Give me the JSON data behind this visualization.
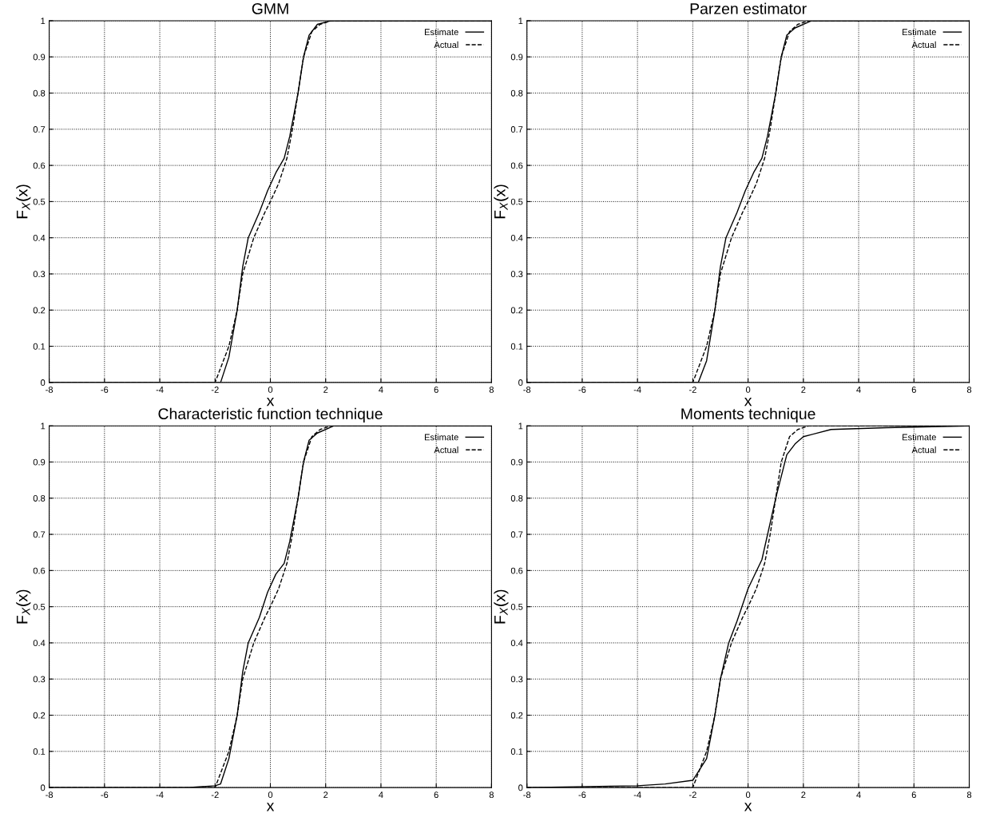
{
  "chart_data": [
    {
      "type": "line",
      "title": "GMM",
      "xlabel": "x",
      "ylabel": "F$_{X}$(x)",
      "xlim": [
        -8,
        8
      ],
      "ylim": [
        0,
        1
      ],
      "xticks": [
        -8,
        -6,
        -4,
        -2,
        0,
        2,
        4,
        6,
        8
      ],
      "yticks": [
        0,
        0.1,
        0.2,
        0.3,
        0.4,
        0.5,
        0.6,
        0.7,
        0.8,
        0.9,
        1
      ],
      "grid": true,
      "legend": "top right",
      "series": [
        {
          "name": "Estimate",
          "color": "#000000",
          "line_style": "solid",
          "x": [
            -8,
            -2,
            -1.8,
            -1.5,
            -1.2,
            -1.0,
            -0.8,
            -0.4,
            -0.1,
            0.2,
            0.5,
            0.7,
            1.0,
            1.2,
            1.4,
            1.7,
            2.2,
            8
          ],
          "values": [
            0,
            0,
            0,
            0.07,
            0.2,
            0.32,
            0.4,
            0.47,
            0.53,
            0.58,
            0.62,
            0.68,
            0.8,
            0.9,
            0.96,
            0.99,
            1,
            1
          ]
        },
        {
          "name": "Actual",
          "color": "#000000",
          "line_style": "dashed",
          "x": [
            -8,
            -2,
            -1.5,
            -1.2,
            -1.0,
            -0.6,
            -0.2,
            0,
            0.3,
            0.6,
            0.8,
            1.0,
            1.2,
            1.5,
            1.8,
            2.2,
            8
          ],
          "values": [
            0,
            0,
            0.1,
            0.2,
            0.3,
            0.4,
            0.47,
            0.5,
            0.55,
            0.62,
            0.7,
            0.8,
            0.9,
            0.97,
            0.99,
            1,
            1
          ]
        }
      ]
    },
    {
      "type": "line",
      "title": "Parzen estimator",
      "xlabel": "x",
      "ylabel": "F$_{X}$(x)",
      "xlim": [
        -8,
        8
      ],
      "ylim": [
        0,
        1
      ],
      "xticks": [
        -8,
        -6,
        -4,
        -2,
        0,
        2,
        4,
        6,
        8
      ],
      "yticks": [
        0,
        0.1,
        0.2,
        0.3,
        0.4,
        0.5,
        0.6,
        0.7,
        0.8,
        0.9,
        1
      ],
      "grid": true,
      "legend": "top right",
      "series": [
        {
          "name": "Estimate",
          "color": "#000000",
          "line_style": "solid",
          "x": [
            -8,
            -2,
            -1.8,
            -1.5,
            -1.2,
            -1.0,
            -0.8,
            -0.4,
            -0.1,
            0.2,
            0.5,
            0.7,
            1.0,
            1.2,
            1.4,
            1.7,
            2.3,
            8
          ],
          "values": [
            0,
            0,
            0,
            0.06,
            0.2,
            0.32,
            0.4,
            0.47,
            0.53,
            0.58,
            0.62,
            0.68,
            0.8,
            0.9,
            0.96,
            0.98,
            1,
            1
          ]
        },
        {
          "name": "Actual",
          "color": "#000000",
          "line_style": "dashed",
          "x": [
            -8,
            -2,
            -1.5,
            -1.2,
            -1.0,
            -0.6,
            -0.2,
            0,
            0.3,
            0.6,
            0.8,
            1.0,
            1.2,
            1.5,
            1.8,
            2.2,
            8
          ],
          "values": [
            0,
            0,
            0.1,
            0.2,
            0.3,
            0.4,
            0.47,
            0.5,
            0.55,
            0.62,
            0.7,
            0.8,
            0.9,
            0.97,
            0.99,
            1,
            1
          ]
        }
      ]
    },
    {
      "type": "line",
      "title": "Characteristic function technique",
      "xlabel": "x",
      "ylabel": "F$_{X}$(x)",
      "xlim": [
        -8,
        8
      ],
      "ylim": [
        0,
        1
      ],
      "xticks": [
        -8,
        -6,
        -4,
        -2,
        0,
        2,
        4,
        6,
        8
      ],
      "yticks": [
        0,
        0.1,
        0.2,
        0.3,
        0.4,
        0.5,
        0.6,
        0.7,
        0.8,
        0.9,
        1
      ],
      "grid": true,
      "legend": "top right",
      "series": [
        {
          "name": "Estimate",
          "color": "#000000",
          "line_style": "solid",
          "x": [
            -8,
            -3,
            -2,
            -1.8,
            -1.5,
            -1.2,
            -1.0,
            -0.8,
            -0.4,
            -0.1,
            0.2,
            0.5,
            0.7,
            1.0,
            1.2,
            1.4,
            1.7,
            2.3,
            8
          ],
          "values": [
            0,
            0,
            0.005,
            0.01,
            0.08,
            0.2,
            0.32,
            0.4,
            0.47,
            0.54,
            0.59,
            0.62,
            0.68,
            0.8,
            0.9,
            0.96,
            0.98,
            1,
            1
          ]
        },
        {
          "name": "Actual",
          "color": "#000000",
          "line_style": "dashed",
          "x": [
            -8,
            -2,
            -1.5,
            -1.2,
            -1.0,
            -0.6,
            -0.2,
            0,
            0.3,
            0.6,
            0.8,
            1.0,
            1.2,
            1.5,
            1.8,
            2.2,
            8
          ],
          "values": [
            0,
            0,
            0.1,
            0.2,
            0.3,
            0.4,
            0.47,
            0.5,
            0.55,
            0.62,
            0.7,
            0.8,
            0.9,
            0.97,
            0.99,
            1,
            1
          ]
        }
      ]
    },
    {
      "type": "line",
      "title": "Moments technique",
      "xlabel": "x",
      "ylabel": "F$_{X}$(x)",
      "xlim": [
        -8,
        8
      ],
      "ylim": [
        0,
        1
      ],
      "xticks": [
        -8,
        -6,
        -4,
        -2,
        0,
        2,
        4,
        6,
        8
      ],
      "yticks": [
        0,
        0.1,
        0.2,
        0.3,
        0.4,
        0.5,
        0.6,
        0.7,
        0.8,
        0.9,
        1
      ],
      "grid": true,
      "legend": "top right",
      "series": [
        {
          "name": "Estimate",
          "color": "#000000",
          "line_style": "solid",
          "x": [
            -8,
            -4,
            -3,
            -2,
            -1.5,
            -1.2,
            -1.0,
            -0.7,
            -0.4,
            0,
            0.5,
            1.0,
            1.4,
            1.7,
            2.0,
            3.0,
            5.0,
            8
          ],
          "values": [
            0,
            0.005,
            0.01,
            0.02,
            0.08,
            0.2,
            0.3,
            0.4,
            0.46,
            0.55,
            0.63,
            0.8,
            0.92,
            0.95,
            0.97,
            0.99,
            0.995,
            1
          ]
        },
        {
          "name": "Actual",
          "color": "#000000",
          "line_style": "dashed",
          "x": [
            -8,
            -2,
            -1.5,
            -1.2,
            -1.0,
            -0.6,
            -0.2,
            0,
            0.3,
            0.6,
            0.8,
            1.0,
            1.2,
            1.5,
            1.8,
            2.2,
            8
          ],
          "values": [
            0,
            0,
            0.1,
            0.2,
            0.3,
            0.4,
            0.47,
            0.5,
            0.55,
            0.62,
            0.7,
            0.8,
            0.9,
            0.97,
            0.99,
            1,
            1
          ]
        }
      ]
    }
  ]
}
